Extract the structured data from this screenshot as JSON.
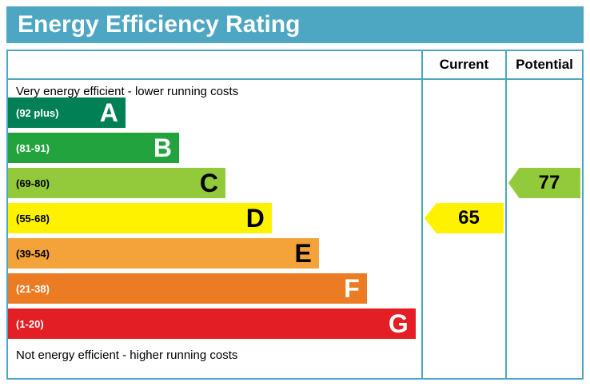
{
  "title": "Energy Efficiency Rating",
  "columns": {
    "current": "Current",
    "potential": "Potential"
  },
  "top_note": "Very energy efficient - lower running costs",
  "bottom_note": "Not energy efficient - higher running costs",
  "colors": {
    "header_bg": "#4da6c2",
    "border": "#4da6c2"
  },
  "chart_data": {
    "type": "bar",
    "title": "Energy Efficiency Rating",
    "scale_note": "EPC energy efficiency bands A (best) to G (worst)",
    "bands": [
      {
        "letter": "A",
        "range": "(92 plus)",
        "color": "#008054",
        "text_color": "#ffffff",
        "width_pct": 28.4
      },
      {
        "letter": "B",
        "range": "(81-91)",
        "color": "#23a33e",
        "text_color": "#ffffff",
        "width_pct": 41.4
      },
      {
        "letter": "C",
        "range": "(69-80)",
        "color": "#93ca3c",
        "text_color": "#000000",
        "width_pct": 52.6
      },
      {
        "letter": "D",
        "range": "(55-68)",
        "color": "#fff200",
        "text_color": "#000000",
        "width_pct": 63.8
      },
      {
        "letter": "E",
        "range": "(39-54)",
        "color": "#f3a33a",
        "text_color": "#000000",
        "width_pct": 75.2
      },
      {
        "letter": "F",
        "range": "(21-38)",
        "color": "#ec7c23",
        "text_color": "#ffffff",
        "width_pct": 86.8
      },
      {
        "letter": "G",
        "range": "(1-20)",
        "color": "#e31e24",
        "text_color": "#ffffff",
        "width_pct": 98.6
      }
    ],
    "current": {
      "value": 65,
      "band": "D",
      "color": "#fff200",
      "text_color": "#000000"
    },
    "potential": {
      "value": 77,
      "band": "C",
      "color": "#93ca3c",
      "text_color": "#000000"
    }
  }
}
